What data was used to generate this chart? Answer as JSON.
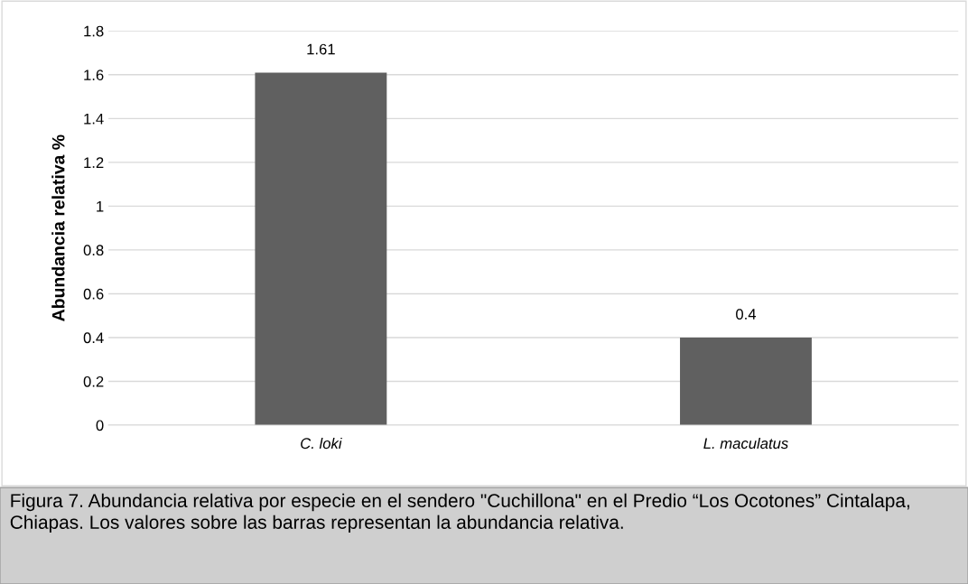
{
  "chart_data": {
    "type": "bar",
    "ylabel": "Abundancia relativa %",
    "categories": [
      "C. loki",
      "L. maculatus"
    ],
    "values": [
      1.61,
      0.4
    ],
    "color": "#606060",
    "ylim": [
      0,
      1.8
    ],
    "yticks": [
      0,
      0.2,
      0.4,
      0.6,
      0.8,
      1,
      1.2,
      1.4,
      1.6,
      1.8
    ],
    "grid": "y",
    "data_labels": true,
    "annotations": [
      "Figura 7. Abundancia relativa por especie en el sendero \"Cuchillona\" en el Predio “Los Ocotones” Cintalapa, Chiapas. Los valores sobre las barras representan la abundancia relativa."
    ]
  }
}
